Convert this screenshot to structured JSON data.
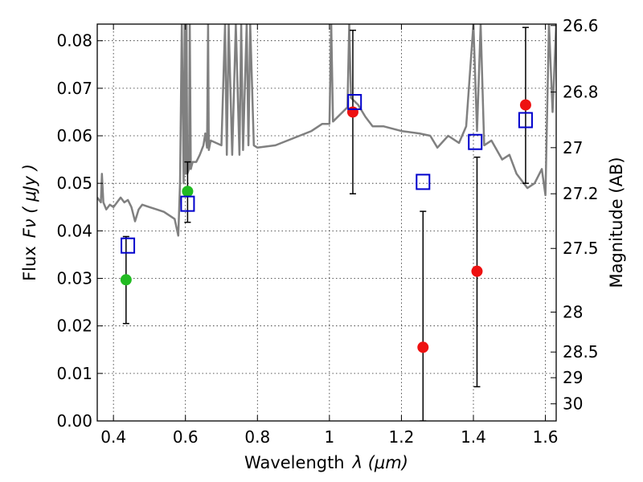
{
  "chart_data": {
    "type": "scatter",
    "xlabel_text": "Wavelength",
    "xlabel_symbol": "λ (μm)",
    "ylabel_text": "Flux",
    "ylabel_symbol": "Fν ( μJy )",
    "ylabel_right": "Magnitude (AB)",
    "xlim": [
      0.355,
      1.63
    ],
    "ylim": [
      0.0,
      0.0835
    ],
    "x_ticks": [
      {
        "value": 0.4,
        "label": "0.4"
      },
      {
        "value": 0.6,
        "label": "0.6"
      },
      {
        "value": 0.8,
        "label": "0.8"
      },
      {
        "value": 1.0,
        "label": "1"
      },
      {
        "value": 1.2,
        "label": "1.2"
      },
      {
        "value": 1.4,
        "label": "1.4"
      },
      {
        "value": 1.6,
        "label": "1.6"
      }
    ],
    "y_ticks": [
      {
        "value": 0.0,
        "label": "0.00"
      },
      {
        "value": 0.01,
        "label": "0.01"
      },
      {
        "value": 0.02,
        "label": "0.02"
      },
      {
        "value": 0.03,
        "label": "0.03"
      },
      {
        "value": 0.04,
        "label": "0.04"
      },
      {
        "value": 0.05,
        "label": "0.05"
      },
      {
        "value": 0.06,
        "label": "0.06"
      },
      {
        "value": 0.07,
        "label": "0.07"
      },
      {
        "value": 0.08,
        "label": "0.08"
      }
    ],
    "right_ticks": [
      {
        "flux": 0.0832,
        "label": "26.6"
      },
      {
        "flux": 0.0692,
        "label": "26.8"
      },
      {
        "flux": 0.0575,
        "label": "27"
      },
      {
        "flux": 0.0478,
        "label": "27.2"
      },
      {
        "flux": 0.0363,
        "label": "27.5"
      },
      {
        "flux": 0.0229,
        "label": "28"
      },
      {
        "flux": 0.0145,
        "label": "28.5"
      },
      {
        "flux": 0.0091,
        "label": "29"
      },
      {
        "flux": 0.0036,
        "label": "30"
      }
    ],
    "grid": true,
    "series": [
      {
        "marker": "circle",
        "color": "#22bb22",
        "points": [
          {
            "x": 0.435,
            "y": 0.0297,
            "err_low": 0.0205,
            "err_high": 0.0388
          },
          {
            "x": 0.606,
            "y": 0.0483,
            "err_low": 0.0418,
            "err_high": 0.0545
          }
        ]
      },
      {
        "marker": "circle",
        "color": "#ee1111",
        "points": [
          {
            "x": 1.065,
            "y": 0.065,
            "err_low": 0.0478,
            "err_high": 0.0822
          },
          {
            "x": 1.26,
            "y": 0.0155,
            "err_low": 0.0,
            "err_high": 0.0441
          },
          {
            "x": 1.41,
            "y": 0.0315,
            "err_low": 0.0072,
            "err_high": 0.0555
          },
          {
            "x": 1.545,
            "y": 0.0665,
            "err_low": 0.05,
            "err_high": 0.0828
          }
        ]
      },
      {
        "marker": "square-open",
        "color": "#0000cc",
        "points": [
          {
            "x": 0.44,
            "y": 0.0369
          },
          {
            "x": 0.606,
            "y": 0.0457
          },
          {
            "x": 1.07,
            "y": 0.0671
          },
          {
            "x": 1.26,
            "y": 0.0503
          },
          {
            "x": 1.405,
            "y": 0.0587
          },
          {
            "x": 1.545,
            "y": 0.0633
          }
        ]
      },
      {
        "type": "line",
        "color": "#808080",
        "x": [
          0.355,
          0.365,
          0.368,
          0.372,
          0.38,
          0.39,
          0.4,
          0.41,
          0.42,
          0.43,
          0.44,
          0.45,
          0.46,
          0.47,
          0.48,
          0.5,
          0.52,
          0.54,
          0.56,
          0.57,
          0.58,
          0.585,
          0.59,
          0.595,
          0.598,
          0.6,
          0.603,
          0.605,
          0.61,
          0.612,
          0.615,
          0.62,
          0.63,
          0.64,
          0.65,
          0.655,
          0.66,
          0.663,
          0.665,
          0.67,
          0.7,
          0.71,
          0.715,
          0.72,
          0.73,
          0.74,
          0.75,
          0.755,
          0.76,
          0.77,
          0.775,
          0.78,
          0.79,
          0.8,
          0.85,
          0.9,
          0.95,
          0.98,
          1.0,
          1.005,
          1.01,
          1.05,
          1.055,
          1.06,
          1.08,
          1.1,
          1.12,
          1.15,
          1.2,
          1.25,
          1.28,
          1.3,
          1.33,
          1.36,
          1.38,
          1.4,
          1.41,
          1.42,
          1.43,
          1.45,
          1.48,
          1.5,
          1.52,
          1.55,
          1.57,
          1.59,
          1.6,
          1.61,
          1.62,
          1.63
        ],
        "y": [
          0.047,
          0.046,
          0.052,
          0.046,
          0.0445,
          0.0455,
          0.045,
          0.046,
          0.047,
          0.046,
          0.0465,
          0.045,
          0.042,
          0.0445,
          0.0455,
          0.045,
          0.0445,
          0.044,
          0.043,
          0.0425,
          0.039,
          0.05,
          0.0835,
          0.05,
          0.0835,
          0.052,
          0.0835,
          0.052,
          0.053,
          0.0835,
          0.053,
          0.0545,
          0.0545,
          0.056,
          0.058,
          0.0605,
          0.0575,
          0.0835,
          0.057,
          0.059,
          0.058,
          0.0835,
          0.056,
          0.0835,
          0.056,
          0.0835,
          0.056,
          0.0835,
          0.057,
          0.0835,
          0.058,
          0.0835,
          0.058,
          0.0575,
          0.058,
          0.0595,
          0.061,
          0.0625,
          0.0625,
          0.0835,
          0.063,
          0.066,
          0.0835,
          0.068,
          0.0665,
          0.064,
          0.062,
          0.062,
          0.061,
          0.0605,
          0.06,
          0.0575,
          0.06,
          0.0585,
          0.062,
          0.0835,
          0.061,
          0.0835,
          0.058,
          0.059,
          0.055,
          0.056,
          0.052,
          0.049,
          0.05,
          0.053,
          0.0475,
          0.0835,
          0.065,
          0.0835
        ]
      }
    ]
  }
}
